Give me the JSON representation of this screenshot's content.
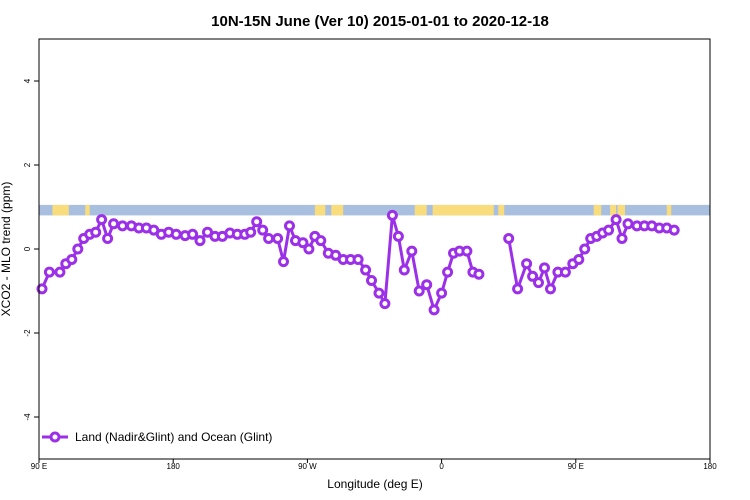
{
  "chart_data": {
    "type": "line",
    "title": "10N-15N June (Ver 10)   2015-01-01 to 2020-12-18",
    "xlabel": "Longitude (deg E)",
    "ylabel": "XCO2 - MLO trend (ppm)",
    "xlim": [
      90,
      540
    ],
    "ylim": [
      -5,
      5
    ],
    "x_ticks": [
      {
        "value": 90,
        "label": "90 E"
      },
      {
        "value": 180,
        "label": "180"
      },
      {
        "value": 270,
        "label": "90 W"
      },
      {
        "value": 360,
        "label": "0"
      },
      {
        "value": 450,
        "label": "90 E"
      },
      {
        "value": 540,
        "label": "180"
      }
    ],
    "y_ticks": [
      {
        "value": -4,
        "label": "-4"
      },
      {
        "value": -2,
        "label": "-2"
      },
      {
        "value": 0,
        "label": "0"
      },
      {
        "value": 2,
        "label": "2"
      },
      {
        "value": 4,
        "label": "4"
      }
    ],
    "grid": false,
    "legend": {
      "position": "bottom-left",
      "label": "Land (Nadir&Glint) and Ocean (Glint)"
    },
    "land_ocean_strip": {
      "y_range": [
        0.8,
        1.05
      ],
      "ocean_color": "#a9bfdf",
      "land_color": "#f9dc7c",
      "land_x_ranges": [
        [
          99,
          110
        ],
        [
          121,
          124
        ],
        [
          275,
          282
        ],
        [
          286,
          294
        ],
        [
          342,
          350
        ],
        [
          354,
          395
        ],
        [
          398,
          402
        ],
        [
          462,
          467
        ],
        [
          473,
          477
        ],
        [
          478,
          483
        ],
        [
          511,
          514
        ]
      ]
    },
    "series": [
      {
        "color": "#9b30e8",
        "segments": [
          [
            [
              92,
              -0.95
            ],
            [
              97,
              -0.55
            ],
            [
              104,
              -0.55
            ],
            [
              108,
              -0.35
            ],
            [
              112,
              -0.25
            ],
            [
              116,
              0.0
            ],
            [
              120,
              0.25
            ],
            [
              124,
              0.35
            ],
            [
              128,
              0.4
            ],
            [
              132,
              0.7
            ],
            [
              136,
              0.25
            ],
            [
              140,
              0.6
            ],
            [
              146,
              0.55
            ],
            [
              152,
              0.55
            ],
            [
              157,
              0.5
            ],
            [
              162,
              0.5
            ],
            [
              167,
              0.45
            ],
            [
              172,
              0.35
            ],
            [
              177,
              0.4
            ],
            [
              182,
              0.35
            ],
            [
              188,
              0.32
            ],
            [
              193,
              0.35
            ],
            [
              198,
              0.2
            ],
            [
              203,
              0.4
            ],
            [
              208,
              0.3
            ],
            [
              213,
              0.3
            ],
            [
              218,
              0.38
            ],
            [
              223,
              0.35
            ],
            [
              228,
              0.35
            ],
            [
              232,
              0.4
            ],
            [
              236,
              0.65
            ],
            [
              240,
              0.45
            ],
            [
              244,
              0.25
            ],
            [
              250,
              0.25
            ],
            [
              254,
              -0.3
            ],
            [
              258,
              0.55
            ],
            [
              262,
              0.2
            ],
            [
              267,
              0.15
            ],
            [
              271,
              0.0
            ],
            [
              275,
              0.3
            ],
            [
              279,
              0.2
            ],
            [
              284,
              -0.1
            ],
            [
              289,
              -0.15
            ],
            [
              294,
              -0.25
            ],
            [
              299,
              -0.25
            ],
            [
              304,
              -0.25
            ],
            [
              309,
              -0.5
            ],
            [
              313,
              -0.75
            ],
            [
              318,
              -1.05
            ],
            [
              322,
              -1.3
            ],
            [
              327,
              0.8
            ],
            [
              331,
              0.3
            ],
            [
              335,
              -0.5
            ],
            [
              340,
              -0.05
            ],
            [
              345,
              -1.0
            ],
            [
              350,
              -0.85
            ],
            [
              355,
              -1.45
            ],
            [
              360,
              -1.05
            ],
            [
              364,
              -0.55
            ],
            [
              368,
              -0.1
            ],
            [
              372,
              -0.05
            ],
            [
              377,
              -0.05
            ],
            [
              381,
              -0.55
            ],
            [
              385,
              -0.6
            ]
          ],
          [
            [
              405,
              0.25
            ],
            [
              411,
              -0.95
            ],
            [
              417,
              -0.35
            ],
            [
              421,
              -0.65
            ],
            [
              425,
              -0.8
            ],
            [
              429,
              -0.45
            ],
            [
              433,
              -0.95
            ],
            [
              438,
              -0.55
            ],
            [
              443,
              -0.55
            ],
            [
              448,
              -0.35
            ],
            [
              452,
              -0.25
            ],
            [
              456,
              0.0
            ],
            [
              460,
              0.25
            ],
            [
              464,
              0.3
            ],
            [
              468,
              0.38
            ],
            [
              472,
              0.45
            ],
            [
              477,
              0.7
            ],
            [
              481,
              0.25
            ],
            [
              485,
              0.6
            ],
            [
              491,
              0.55
            ],
            [
              496,
              0.55
            ],
            [
              501,
              0.55
            ],
            [
              506,
              0.5
            ],
            [
              511,
              0.5
            ],
            [
              516,
              0.45
            ]
          ]
        ]
      }
    ]
  }
}
